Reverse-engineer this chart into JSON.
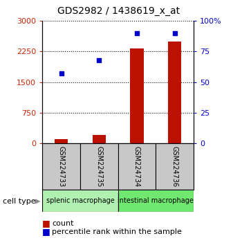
{
  "title": "GDS2982 / 1438619_x_at",
  "samples": [
    "GSM224733",
    "GSM224735",
    "GSM224734",
    "GSM224736"
  ],
  "counts": [
    100,
    210,
    2320,
    2490
  ],
  "percentiles": [
    57,
    68,
    90,
    90
  ],
  "ylim_left": [
    0,
    3000
  ],
  "ylim_right": [
    0,
    100
  ],
  "yticks_left": [
    0,
    750,
    1500,
    2250,
    3000
  ],
  "yticks_right": [
    0,
    25,
    50,
    75,
    100
  ],
  "bar_color": "#bb1100",
  "dot_color": "#0000cc",
  "bar_width": 0.35,
  "background_color": "#ffffff",
  "left_tick_color": "#cc2200",
  "right_tick_color": "#0000cc",
  "sample_box_color": "#c8c8c8",
  "splenic_color": "#b0f0b0",
  "intestinal_color": "#70e870",
  "legend_labels": [
    "count",
    "percentile rank within the sample"
  ],
  "title_fontsize": 10,
  "tick_fontsize": 8,
  "sample_fontsize": 7,
  "celltype_fontsize": 7,
  "legend_fontsize": 8
}
